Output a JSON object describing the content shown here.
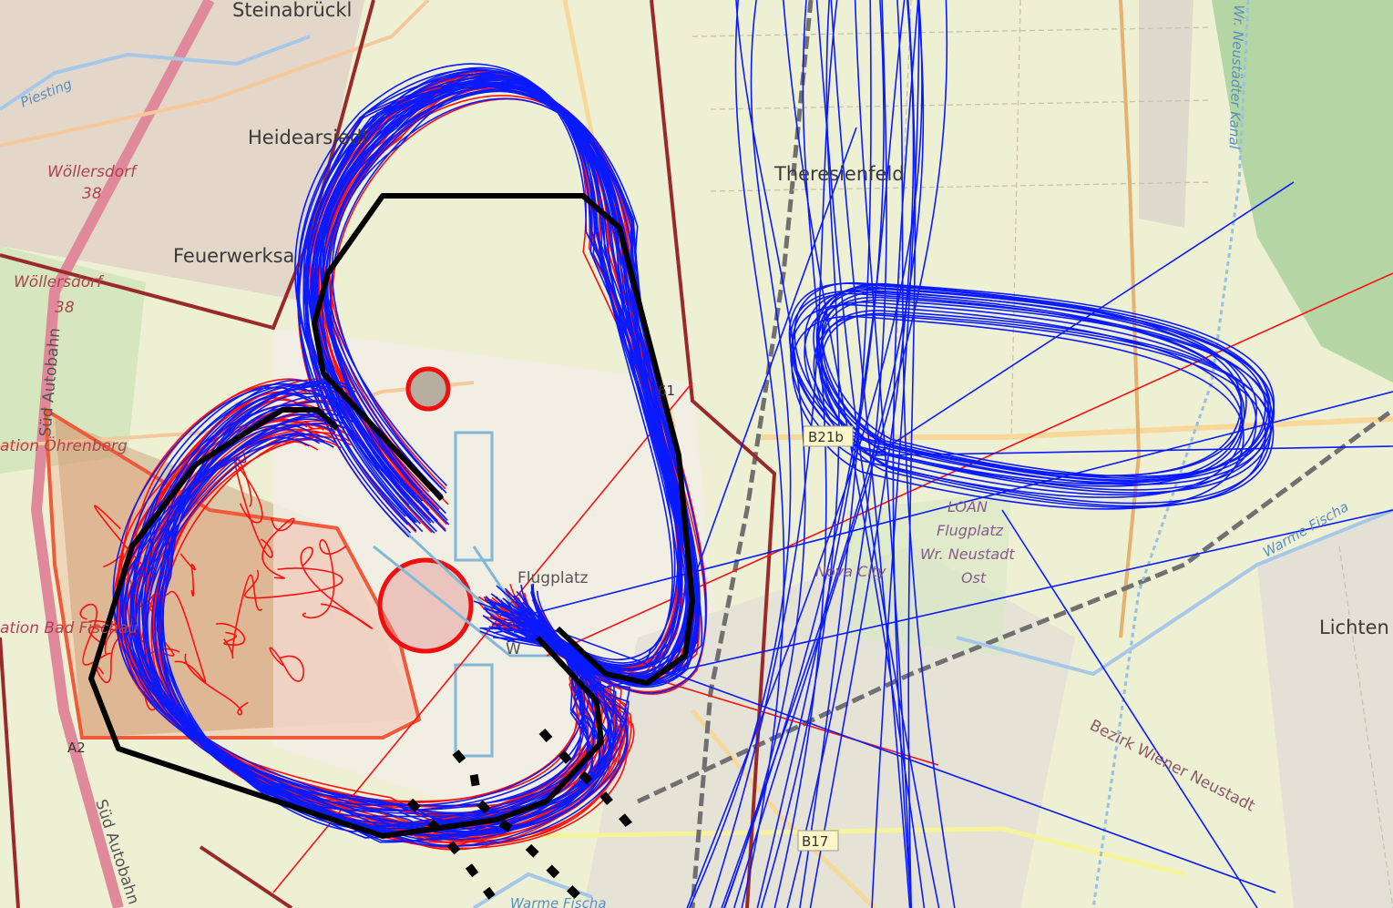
{
  "map_labels": {
    "steinabrueckl": "Steinabrückl",
    "heidearsiedlung": "Heidearsiedl",
    "feuerwerksanstalt": "Feuerwerksa",
    "theresienfeld": "Theresienfeld",
    "woellersdorf_a": "Wöllersdorf",
    "woellersdorf_a_exit": "38",
    "woellersdorf_b": "Wöllersdorf",
    "woellersdorf_b_exit": "38",
    "piesting": "Piesting",
    "neustaedter_kanal": "Wr. Neustädter Kanal",
    "sued_autobahn_a": "Süd Autobahn",
    "sued_autobahn_b": "Süd Autobahn",
    "station_oehrenberg": "ation Öhrenberg",
    "station_bad_fischau": "ation Bad Fischau",
    "loan": "LOAN",
    "flugplatz": "Flugplatz",
    "wr_neustadt": "Wr. Neustadt",
    "ost": "Ost",
    "nova_city": "Nova City",
    "lichtenwoerth": "Lichten",
    "bezirk": "Bezirk Wiener Neustadt",
    "warme_fischa_a": "Warme Fischa",
    "warme_fischa_b": "Warme Fischa",
    "b21b": "B21b",
    "b17": "B17",
    "a2": "A2",
    "b61": "61",
    "flugplatz_w": "Flugplatz",
    "w_label": "W"
  },
  "colors": {
    "track_blue": "#0a1aff",
    "track_red": "#ff1010",
    "boundary_black": "#000000",
    "restricted_orange": "#f05a3a",
    "ctr_brown": "#9a2a2a"
  }
}
